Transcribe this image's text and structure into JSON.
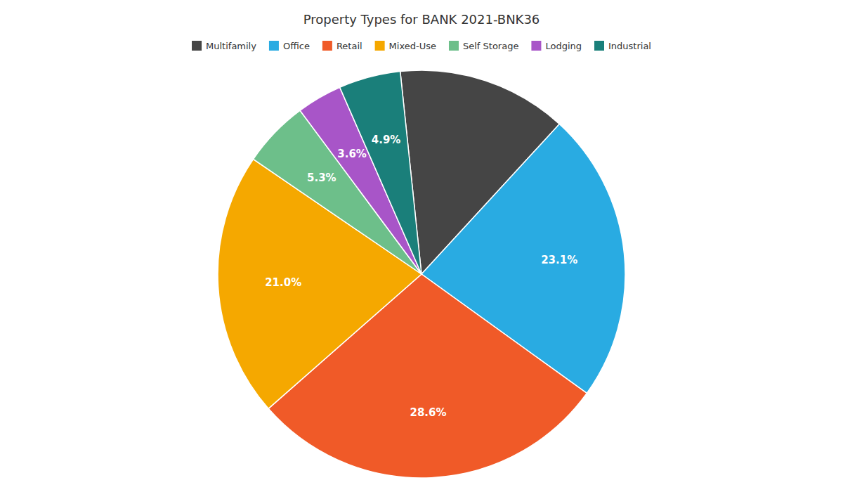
{
  "chart_data": {
    "type": "pie",
    "title": "Property Types for BANK 2021-BNK36",
    "categories": [
      "Multifamily",
      "Office",
      "Retail",
      "Mixed-Use",
      "Self Storage",
      "Lodging",
      "Industrial"
    ],
    "values": [
      13.5,
      23.1,
      28.6,
      21.0,
      5.3,
      3.6,
      4.9
    ],
    "value_labels": [
      null,
      "23.1%",
      "28.6%",
      "21.0%",
      "5.3%",
      "3.6%",
      "4.9%"
    ],
    "colors": [
      "#454545",
      "#29abe2",
      "#f05a28",
      "#f5a800",
      "#6dbf8a",
      "#a855c8",
      "#1a7f7a"
    ],
    "data_labels": true,
    "legend": "top"
  }
}
